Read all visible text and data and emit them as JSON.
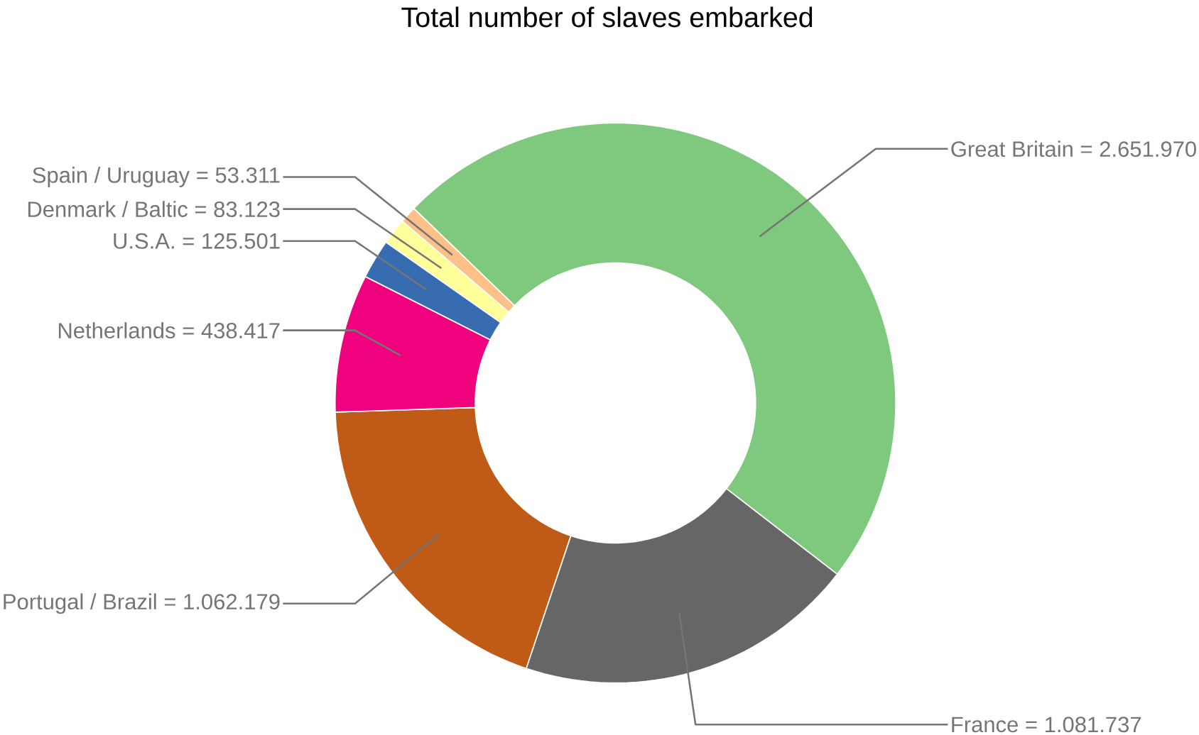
{
  "chart_data": {
    "type": "donut",
    "title": "Total number of slaves embarked",
    "categories": [
      "Great Britain",
      "France",
      "Portugal / Brazil",
      "Netherlands",
      "U.S.A.",
      "Denmark / Baltic",
      "Spain / Uruguay"
    ],
    "values": [
      2651970,
      1081737,
      1062179,
      438417,
      125501,
      83123,
      53311
    ],
    "value_labels": [
      "= 2.651.970",
      "= 1.081.737",
      "= 1.062.179",
      "= 438.417",
      "= 125.501",
      "= 83.123",
      "= 53.311"
    ],
    "colors": [
      "#7fc97f",
      "#666666",
      "#bf5b17",
      "#f0027f",
      "#386cb0",
      "#ffff99",
      "#fdc086"
    ]
  }
}
